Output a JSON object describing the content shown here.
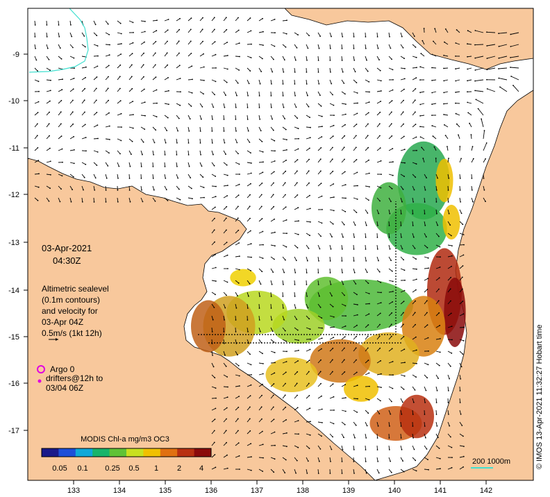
{
  "map": {
    "date": "03-Apr-2021",
    "time": "04:30Z",
    "legend_lines": [
      "Altimetric sealevel",
      "(0.1m contours)",
      "and velocity for",
      "03-Apr 04Z",
      "0.5m/s (1kt 12h)"
    ],
    "argo_label": "Argo 0",
    "drifters_label": "drifters@12h to",
    "drifters_date": "03/04 06Z",
    "colorbar_title": "MODIS Chl-a mg/m3 OC3",
    "colorbar_ticks": [
      "0.05",
      "0.1",
      "0.25",
      "0.5",
      "1",
      "2",
      "4"
    ],
    "colorbar_colors": [
      "#1a1a8a",
      "#1d4fd8",
      "#10a8d8",
      "#18b46a",
      "#5fc236",
      "#c8e020",
      "#f0c000",
      "#e07010",
      "#b83010",
      "#8a0a0a"
    ],
    "lon_ticks": [
      "133",
      "134",
      "135",
      "136",
      "137",
      "138",
      "139",
      "140",
      "141",
      "142"
    ],
    "lat_ticks": [
      "-9",
      "-10",
      "-11",
      "-12",
      "-13",
      "-14",
      "-15",
      "-16",
      "-17"
    ],
    "scale_label": "200  1000m",
    "credit": "© IMOS 13-Apr-2021 11:32:27 Hobart time",
    "colors": {
      "land": "#f8c89c",
      "sea": "#ffffff",
      "coast": "#000000",
      "contour": "#40e0d0"
    }
  }
}
